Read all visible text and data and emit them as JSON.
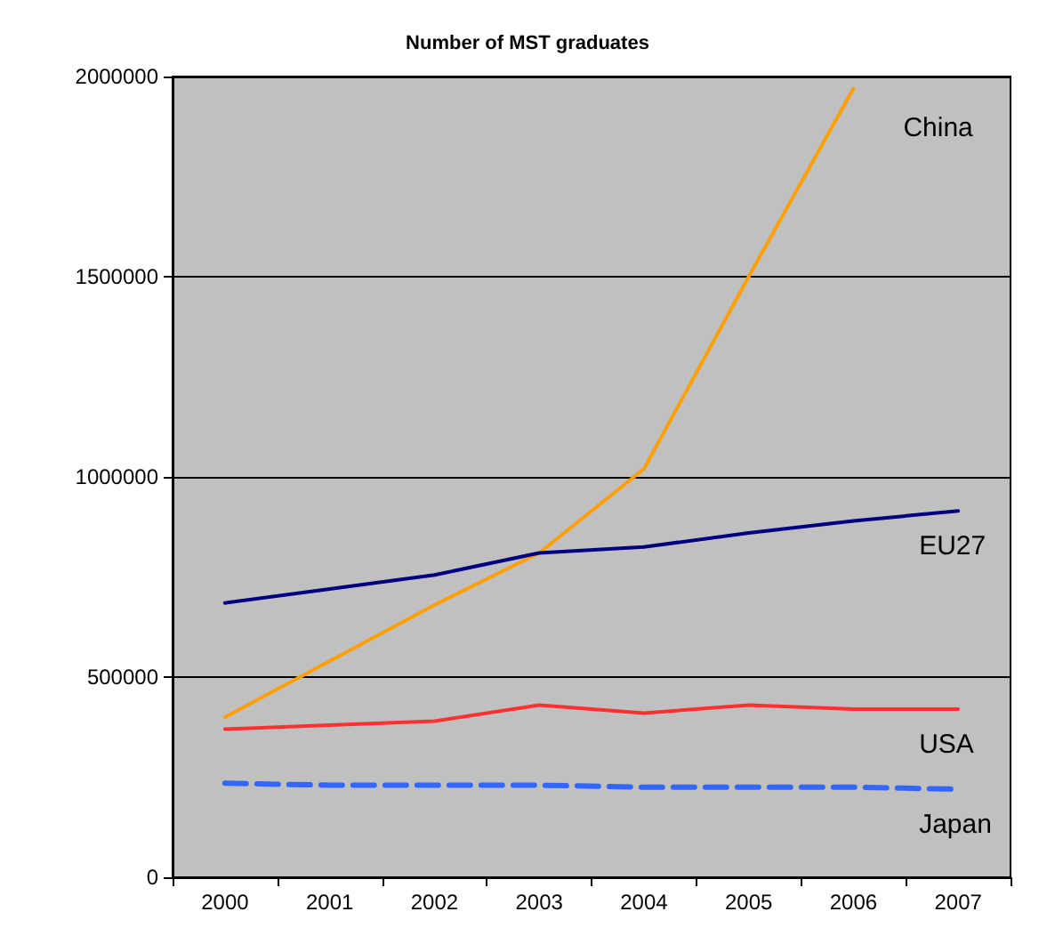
{
  "chart_data": {
    "type": "line",
    "title": "Number of MST graduates",
    "categories": [
      "2000",
      "2001",
      "2002",
      "2003",
      "2004",
      "2005",
      "2006",
      "2007"
    ],
    "series": [
      {
        "name": "China",
        "color": "#ffa000",
        "values": [
          400000,
          540000,
          680000,
          810000,
          1020000,
          1500000,
          1970000,
          null
        ]
      },
      {
        "name": "EU27",
        "color": "#000080",
        "values": [
          685000,
          720000,
          755000,
          810000,
          825000,
          860000,
          890000,
          915000
        ]
      },
      {
        "name": "USA",
        "color": "#ff3030",
        "values": [
          370000,
          380000,
          390000,
          430000,
          410000,
          430000,
          420000,
          420000
        ]
      },
      {
        "name": "Japan",
        "color": "#3366ff",
        "values": [
          235000,
          230000,
          230000,
          230000,
          225000,
          225000,
          225000,
          220000
        ],
        "line_style": "dashed"
      }
    ],
    "ylim": [
      0,
      2000000
    ],
    "yticks": [
      0,
      500000,
      1000000,
      1500000,
      2000000
    ],
    "grid": "y",
    "legend": false,
    "marker": "none"
  }
}
